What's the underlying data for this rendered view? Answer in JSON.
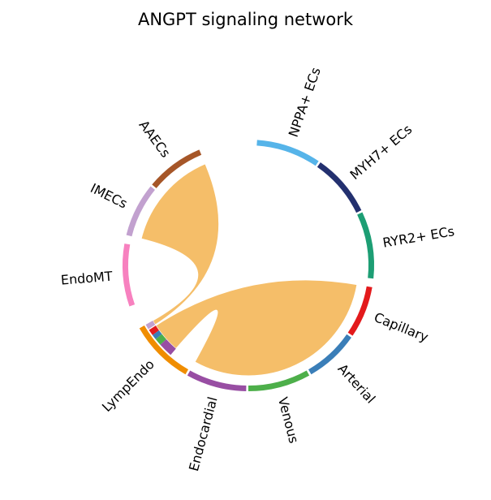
{
  "title": "ANGPT signaling network",
  "link_color": "#F5BE69",
  "groups": [
    {
      "name": "NPPA+ ECs",
      "color": "#56B4E9",
      "start": 4,
      "end": 34
    },
    {
      "name": "MYH7+ ECs",
      "color": "#23306F",
      "start": 35,
      "end": 64
    },
    {
      "name": "RYR2+ ECs",
      "color": "#1D9E74",
      "start": 65,
      "end": 96
    },
    {
      "name": "Capillary",
      "color": "#E31A1C",
      "start": 100,
      "end": 124
    },
    {
      "name": "Arterial",
      "color": "#3A7EB8",
      "start": 125,
      "end": 150
    },
    {
      "name": "Venous",
      "color": "#4DAF4A",
      "start": 151,
      "end": 180
    },
    {
      "name": "Endocardial",
      "color": "#984EA3",
      "start": 181,
      "end": 209
    },
    {
      "name": "LympEndo",
      "color": "#F08D00",
      "start": 210,
      "end": 240
    },
    {
      "name": "EndoMT",
      "color": "#F781BF",
      "start": 251,
      "end": 280
    },
    {
      "name": "IMECs",
      "color": "#C2A1CF",
      "start": 284,
      "end": 309
    },
    {
      "name": "AAECs",
      "color": "#A65628",
      "start": 310,
      "end": 337
    }
  ],
  "sender_segments": [
    {
      "color": "#C2A1CF",
      "start": 237.5,
      "end": 240
    },
    {
      "color": "#E31A1C",
      "start": 234,
      "end": 237
    },
    {
      "color": "#3A7EB8",
      "start": 231.5,
      "end": 234
    },
    {
      "color": "#4DAF4A",
      "start": 228,
      "end": 231.5
    },
    {
      "color": "#984EA3",
      "start": 221,
      "end": 228
    }
  ],
  "links": [
    {
      "source_start": 237.5,
      "source_end": 240,
      "target_start": 284,
      "target_end": 337
    },
    {
      "source_start": 221,
      "source_end": 237,
      "target_start": 100,
      "target_end": 209
    }
  ]
}
